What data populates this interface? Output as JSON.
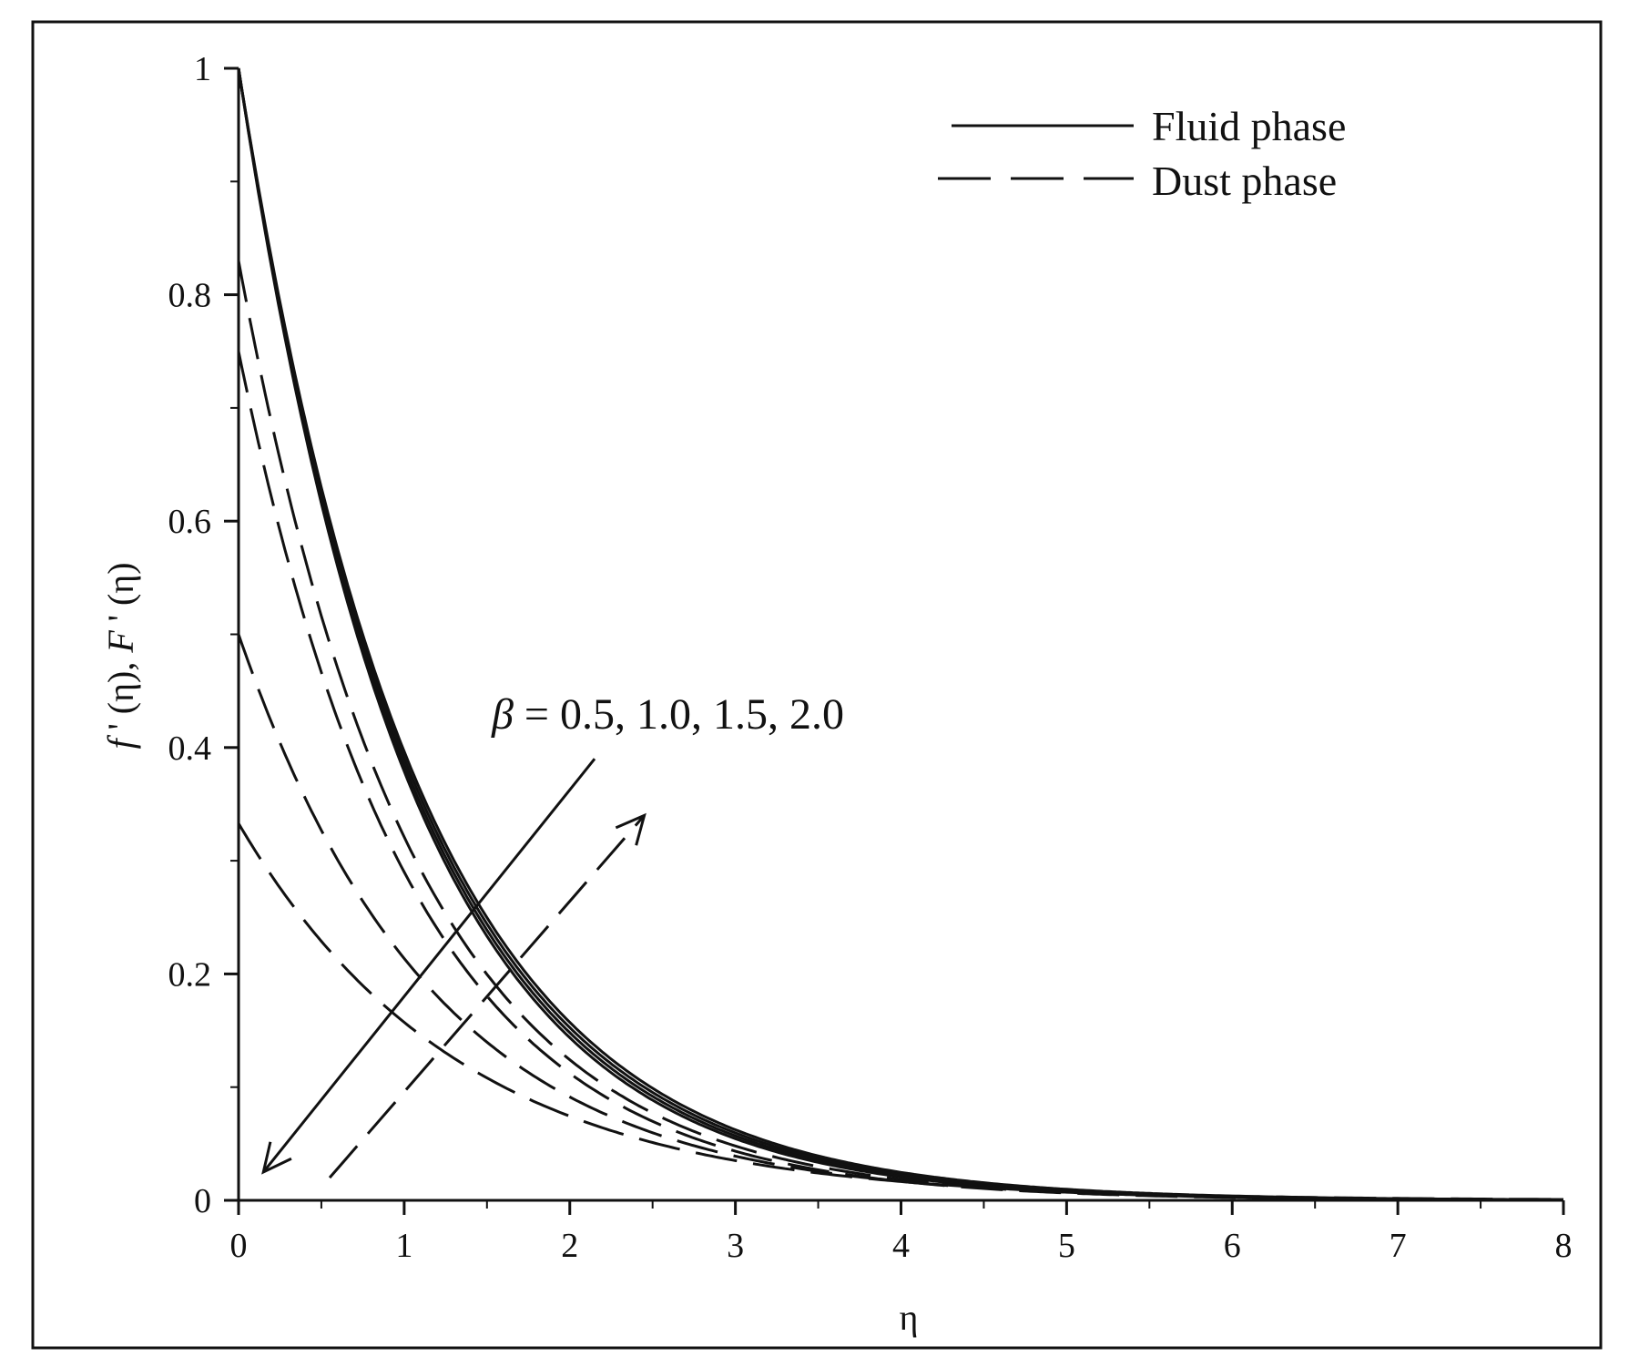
{
  "chart_data": {
    "type": "line",
    "xlabel": "η",
    "ylabel": {
      "f_symbol": "f",
      "f_rest": " ' (η), ",
      "F_symbol": "F",
      "F_rest": " ' (η)"
    },
    "xlim": [
      0,
      8
    ],
    "ylim": [
      0,
      1
    ],
    "x_ticks": [
      "0",
      "1",
      "2",
      "3",
      "4",
      "5",
      "6",
      "7",
      "8"
    ],
    "y_ticks": [
      "0",
      "0.2",
      "0.4",
      "0.6",
      "0.8",
      "1"
    ],
    "legend": {
      "position": "top-right",
      "entries": [
        {
          "label": "Fluid phase",
          "style": "solid"
        },
        {
          "label": "Dust phase",
          "style": "dashed"
        }
      ]
    },
    "annotation": {
      "symbol": "β",
      "text": " = 0.5, 1.0, 1.5, 2.0"
    },
    "annotation_arrows": [
      {
        "style": "solid",
        "from": [
          2.15,
          0.39
        ],
        "to": [
          0.15,
          0.025
        ]
      },
      {
        "style": "dashed",
        "from": [
          0.55,
          0.02
        ],
        "to": [
          2.45,
          0.34
        ]
      }
    ],
    "series": [
      {
        "style": "solid",
        "x0": 0,
        "y0": 1.0,
        "decay": 0.97
      },
      {
        "style": "solid",
        "x0": 0,
        "y0": 1.0,
        "decay": 0.955
      },
      {
        "style": "solid",
        "x0": 0,
        "y0": 1.0,
        "decay": 0.94
      },
      {
        "style": "solid",
        "x0": 0,
        "y0": 1.0,
        "decay": 0.925
      },
      {
        "style": "dashed",
        "x0": 0,
        "y0": 0.83,
        "decay": 0.95
      },
      {
        "style": "dashed",
        "x0": 0,
        "y0": 0.75,
        "decay": 0.95
      },
      {
        "style": "dashed",
        "x0": 0,
        "y0": 0.5,
        "decay": 0.85
      },
      {
        "style": "dashed",
        "x0": 0,
        "y0": 0.333,
        "decay": 0.75
      }
    ],
    "grid": false
  }
}
